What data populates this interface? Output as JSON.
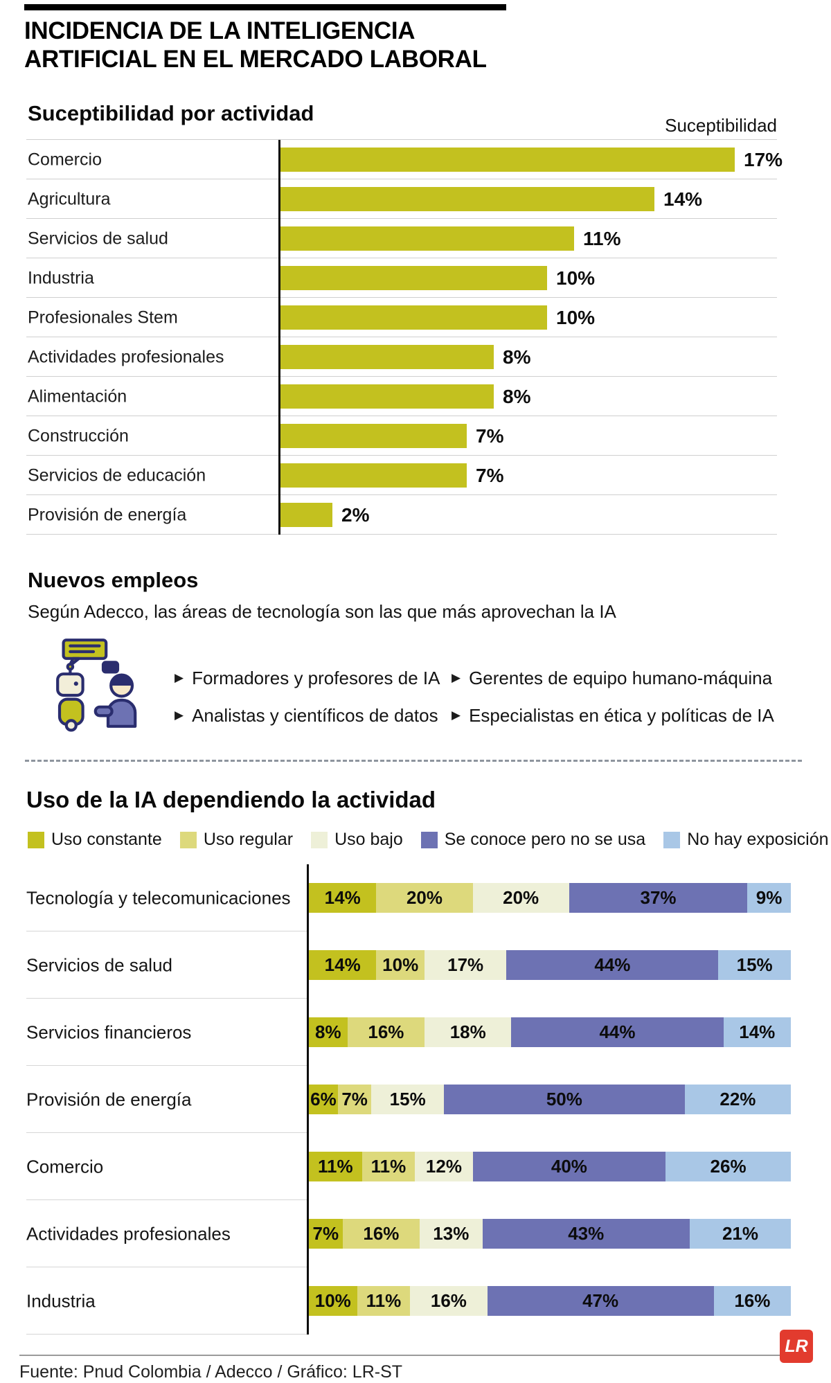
{
  "header": {
    "title_line1": "INCIDENCIA DE LA INTELIGENCIA",
    "title_line2": "ARTIFICIAL EN EL MERCADO LABORAL"
  },
  "section1": {
    "heading": "Suceptibilidad por actividad",
    "axis_label": "Suceptibilidad"
  },
  "section2": {
    "heading": "Nuevos empleos",
    "subtitle": "Según Adecco, las áreas de tecnología son las que más aprovechan la IA",
    "items_col1": [
      "Formadores y profesores de IA",
      "Analistas y científicos de datos"
    ],
    "items_col2": [
      "Gerentes de equipo humano-máquina",
      "Especialistas en ética y políticas de IA"
    ]
  },
  "section3": {
    "heading": "Uso de la IA dependiendo la actividad",
    "legend": [
      {
        "label": "Uso constante",
        "color": "#c3c11f"
      },
      {
        "label": "Uso regular",
        "color": "#ddd97c"
      },
      {
        "label": "Uso bajo",
        "color": "#eef0d8"
      },
      {
        "label": "Se conoce pero no se usa",
        "color": "#6d72b3"
      },
      {
        "label": "No hay exposición",
        "color": "#a9c7e6"
      }
    ]
  },
  "chart_data": [
    {
      "type": "bar",
      "orientation": "horizontal",
      "title": "Suceptibilidad por actividad",
      "value_header": "Suceptibilidad",
      "categories": [
        "Comercio",
        "Agricultura",
        "Servicios de salud",
        "Industria",
        "Profesionales Stem",
        "Actividades profesionales",
        "Alimentación",
        "Construcción",
        "Servicios de educación",
        "Provisión de energía"
      ],
      "values": [
        17,
        14,
        11,
        10,
        10,
        8,
        8,
        7,
        7,
        2
      ],
      "unit": "%",
      "bar_color": "#c3c11f",
      "xlim": [
        0,
        18
      ],
      "grid": false,
      "value_labels": "right-of-bar"
    },
    {
      "type": "bar",
      "subtype": "stacked",
      "orientation": "horizontal",
      "title": "Uso de la IA dependiendo la actividad",
      "categories": [
        "Tecnología y telecomunicaciones",
        "Servicios de salud",
        "Servicios financieros",
        "Provisión de energía",
        "Comercio",
        "Actividades profesionales",
        "Industria"
      ],
      "series": [
        {
          "name": "Uso constante",
          "color": "#c3c11f",
          "values": [
            14,
            14,
            8,
            6,
            11,
            7,
            10
          ]
        },
        {
          "name": "Uso regular",
          "color": "#ddd97c",
          "values": [
            20,
            10,
            16,
            7,
            11,
            16,
            11
          ]
        },
        {
          "name": "Uso bajo",
          "color": "#eef0d8",
          "values": [
            20,
            17,
            18,
            15,
            12,
            13,
            16
          ]
        },
        {
          "name": "Se conoce pero no se usa",
          "color": "#6d72b3",
          "values": [
            37,
            44,
            44,
            50,
            40,
            43,
            47
          ]
        },
        {
          "name": "No hay exposición",
          "color": "#a9c7e6",
          "values": [
            9,
            15,
            14,
            22,
            26,
            21,
            16
          ]
        }
      ],
      "unit": "%",
      "xlim": [
        0,
        100
      ],
      "legend_position": "top",
      "value_labels": "inside-segments"
    }
  ],
  "footer": {
    "source": "Fuente: Pnud Colombia / Adecco / Gráfico: LR-ST",
    "logo": "LR"
  }
}
